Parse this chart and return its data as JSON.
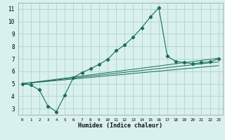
{
  "xlabel": "Humidex (Indice chaleur)",
  "bg_color": "#d8f0ee",
  "grid_color": "#b0d4d0",
  "line_color": "#1a6b5a",
  "xlim": [
    -0.5,
    23.5
  ],
  "ylim": [
    2.5,
    11.5
  ],
  "xticks": [
    0,
    1,
    2,
    3,
    4,
    5,
    6,
    7,
    8,
    9,
    10,
    11,
    12,
    13,
    14,
    15,
    16,
    17,
    18,
    19,
    20,
    21,
    22,
    23
  ],
  "yticks": [
    3,
    4,
    5,
    6,
    7,
    8,
    9,
    10,
    11
  ],
  "main_x": [
    0,
    1,
    2,
    3,
    4,
    5,
    6,
    7,
    8,
    9,
    10,
    11,
    12,
    13,
    14,
    15,
    16,
    17,
    18,
    19,
    20,
    21,
    22,
    23
  ],
  "main_y": [
    5.0,
    4.9,
    4.5,
    3.2,
    2.75,
    4.1,
    5.5,
    5.9,
    6.2,
    6.55,
    6.95,
    7.65,
    8.1,
    8.75,
    9.5,
    10.35,
    11.1,
    7.2,
    6.8,
    6.7,
    6.6,
    6.7,
    6.75,
    7.0
  ],
  "trend_lines": [
    {
      "x": [
        0,
        23
      ],
      "y": [
        5.0,
        6.45
      ]
    },
    {
      "x": [
        0,
        23
      ],
      "y": [
        5.0,
        6.75
      ]
    },
    {
      "x": [
        0,
        23
      ],
      "y": [
        5.0,
        7.05
      ]
    }
  ]
}
